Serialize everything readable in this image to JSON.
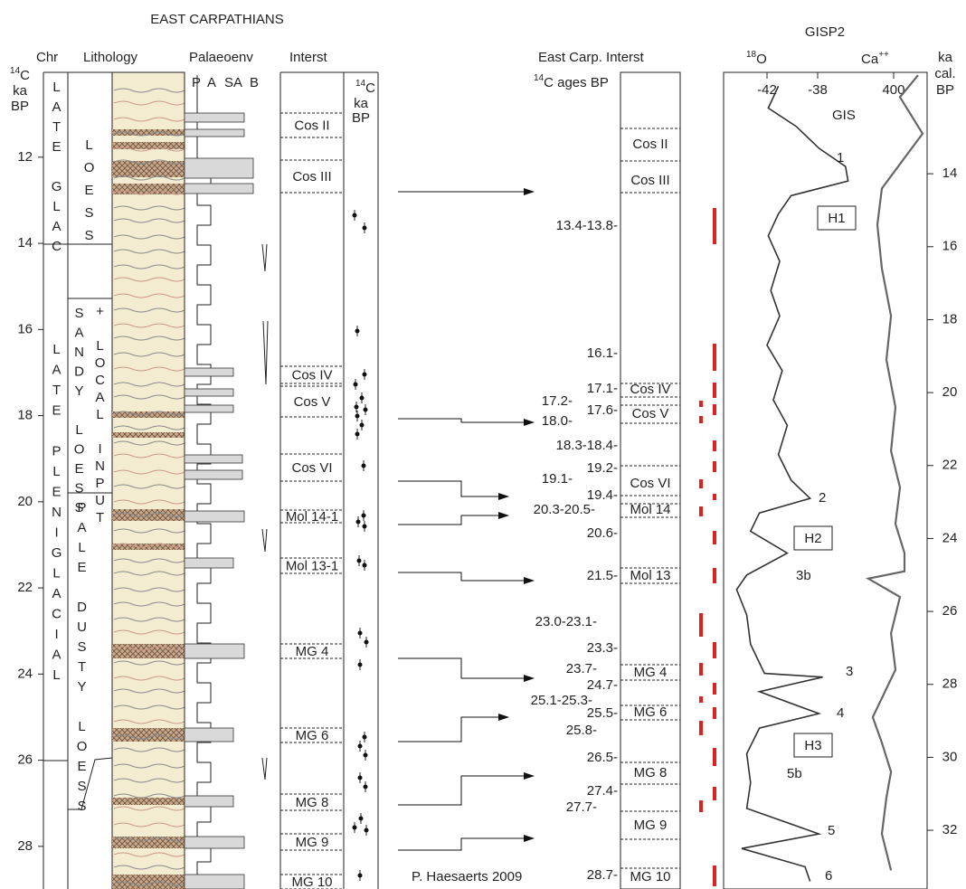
{
  "left": {
    "title": "EAST CARPATHIANS",
    "columns": [
      "Chr",
      "Lithology",
      "Palaeoenv",
      "Interst"
    ],
    "palaeoenv_scale": [
      "P",
      "A",
      "SA",
      "B"
    ],
    "axis": {
      "label": [
        {
          "sup": "14",
          "text": "C"
        },
        "ka",
        "BP"
      ],
      "ticks": [
        12,
        14,
        16,
        18,
        20,
        22,
        24,
        26,
        28
      ],
      "ylim": [
        10.03,
        28.99
      ]
    },
    "units": [
      "LATE GLAC",
      "LATE PLENIGLACIAL",
      "LOESS",
      "SANDY LOESS",
      "+ LOCAL INPUT",
      "PALE DUSTY LOESS"
    ],
    "interstadials": [
      "Cos II",
      "Cos III",
      "Cos IV",
      "Cos V",
      "Cos VI",
      "Mol 14-1",
      "Mol 13-1",
      "MG 4",
      "MG 6",
      "MG 8",
      "MG 9",
      "MG 10"
    ],
    "c14_header": [
      {
        "sup": "14",
        "text": "C"
      },
      "ka",
      "BP"
    ]
  },
  "middle": {
    "header": "East Carp. Interst",
    "ages_header": {
      "sup": "14",
      "text": "C ages BP"
    },
    "ages": [
      "13.4-13.8-",
      "16.1-",
      "17.1-",
      "17.2-",
      "17.6-",
      "18.0-",
      "18.3-18.4-",
      "19.2-",
      "19.1-",
      "19.4-",
      "20.3-20.5-",
      "20.6-",
      "21.5-",
      "23.0-23.1-",
      "23.3-",
      "23.7-",
      "24.7-",
      "25.1-25.3-",
      "25.5-",
      "25.8-",
      "26.5-",
      "27.4-",
      "27.7-",
      "28.7-"
    ],
    "interstadials": [
      "Cos II",
      "Cos III",
      "Cos IV",
      "Cos V",
      "Cos VI",
      "Mol 14",
      "Mol 13",
      "MG 4",
      "MG 6",
      "MG 8",
      "MG 9",
      "MG 10"
    ],
    "credit": "P. Haesaerts 2009"
  },
  "gisp2": {
    "title": "GISP2",
    "age_axis": {
      "label": [
        "ka",
        "cal.",
        "BP"
      ],
      "ticks": [
        14,
        16,
        18,
        20,
        22,
        24,
        26,
        28,
        30,
        32
      ],
      "ylim": [
        11.22,
        33.61
      ]
    },
    "d18o": {
      "label": {
        "sup": "18",
        "text": "O"
      },
      "ticks": [
        -42,
        -38
      ],
      "xlim": [
        -45.43,
        -34.0
      ],
      "color": "#333333",
      "age": [
        11.6,
        12.2,
        12.7,
        13.3,
        13.8,
        14.2,
        14.6,
        15.1,
        15.7,
        16.4,
        17.2,
        17.9,
        18.7,
        19.4,
        20.2,
        20.9,
        21.7,
        22.4,
        22.9,
        23.3,
        23.8,
        24.4,
        25.0,
        25.4,
        26.1,
        26.9,
        27.7,
        27.8,
        28.2,
        28.8,
        29.2,
        29.9,
        30.7,
        31.4,
        32.1,
        32.5,
        33.0,
        33.4
      ],
      "values": [
        -41.1,
        -41.9,
        -39.7,
        -37.9,
        -35.8,
        -35.6,
        -40.1,
        -41.1,
        -41.9,
        -41.0,
        -41.7,
        -41.0,
        -42.0,
        -40.8,
        -41.5,
        -40.4,
        -41.1,
        -40.1,
        -38.6,
        -42.6,
        -43.3,
        -40.4,
        -43.6,
        -44.4,
        -43.6,
        -43.3,
        -42.2,
        -37.6,
        -42.6,
        -37.9,
        -42.6,
        -43.6,
        -43.3,
        -43.6,
        -37.9,
        -44.0,
        -39.0,
        -38.6
      ]
    },
    "ca": {
      "label": {
        "text": "Ca",
        "sup": "++"
      },
      "ticks": [
        400
      ],
      "xlim": [
        200,
        1000
      ],
      "log": true,
      "color": "#666666",
      "age": [
        11.3,
        11.9,
        12.9,
        14.4,
        15.4,
        16.6,
        17.9,
        19.1,
        20.4,
        21.6,
        22.6,
        23.6,
        24.4,
        24.9,
        25.1,
        25.6,
        26.6,
        27.6,
        28.9,
        29.6,
        30.4,
        31.1,
        32.1,
        33.1
      ],
      "values": [
        780,
        476,
        884,
        290,
        256,
        290,
        372,
        328,
        420,
        372,
        476,
        420,
        538,
        538,
        200,
        476,
        372,
        420,
        226,
        290,
        372,
        328,
        290,
        372
      ]
    },
    "gis_label": "GIS",
    "events": [
      "1",
      "H1",
      "2",
      "H2",
      "3b",
      "3",
      "4",
      "H3",
      "5b",
      "5",
      "6"
    ]
  }
}
